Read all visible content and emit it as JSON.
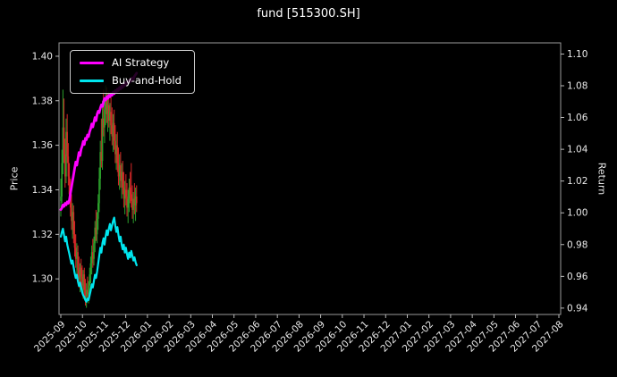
{
  "title": "fund [515300.SH]",
  "axes": {
    "left_label": "Price",
    "right_label": "Return"
  },
  "legend": [
    {
      "label": "AI Strategy",
      "color": "#ff00ff"
    },
    {
      "label": "Buy-and-Hold",
      "color": "#00e5ee"
    }
  ],
  "colors": {
    "background": "#000000",
    "text": "#eaeaea",
    "frame": "#9a9a9a",
    "up_candle": "#2ca02c",
    "down_candle": "#d62728",
    "ai_line": "#ff00ff",
    "buy_hold_line": "#00e5ee"
  },
  "chart_data": {
    "type": "candlestick+line",
    "title": "fund [515300.SH]",
    "x_tick_labels": [
      "2025-09",
      "2025-10",
      "2025-11",
      "2025-12",
      "2026-01",
      "2026-02",
      "2026-03",
      "2026-04",
      "2026-05",
      "2026-06",
      "2026-07",
      "2026-08",
      "2026-09",
      "2026-10",
      "2026-11",
      "2026-12",
      "2027-01",
      "2027-02",
      "2027-03",
      "2027-04",
      "2027-05",
      "2027-06",
      "2027-07",
      "2027-08"
    ],
    "price_axis": {
      "label": "Price",
      "ticks": [
        1.3,
        1.32,
        1.34,
        1.36,
        1.38,
        1.4
      ],
      "range": [
        1.284,
        1.406
      ]
    },
    "return_axis": {
      "label": "Return",
      "ticks": [
        0.94,
        0.96,
        0.98,
        1.0,
        1.02,
        1.04,
        1.06,
        1.08,
        1.1
      ],
      "range": [
        0.936,
        1.107
      ]
    },
    "data_date_range": [
      "2025-09-01",
      "2025-12-15"
    ],
    "data_span_months": 3.5,
    "ohlc_legend": [
      "open",
      "high",
      "low",
      "close"
    ],
    "ohlc": [
      [
        1.335,
        1.345,
        1.328,
        1.337
      ],
      [
        1.337,
        1.358,
        1.334,
        1.352
      ],
      [
        1.352,
        1.385,
        1.347,
        1.368
      ],
      [
        1.368,
        1.381,
        1.352,
        1.356
      ],
      [
        1.356,
        1.363,
        1.341,
        1.346
      ],
      [
        1.346,
        1.372,
        1.343,
        1.366
      ],
      [
        1.366,
        1.374,
        1.352,
        1.355
      ],
      [
        1.355,
        1.361,
        1.342,
        1.346
      ],
      [
        1.346,
        1.352,
        1.334,
        1.338
      ],
      [
        1.338,
        1.345,
        1.328,
        1.332
      ],
      [
        1.332,
        1.338,
        1.322,
        1.326
      ],
      [
        1.326,
        1.334,
        1.318,
        1.33
      ],
      [
        1.33,
        1.333,
        1.316,
        1.32
      ],
      [
        1.32,
        1.326,
        1.31,
        1.314
      ],
      [
        1.314,
        1.32,
        1.305,
        1.309
      ],
      [
        1.309,
        1.316,
        1.302,
        1.312
      ],
      [
        1.312,
        1.315,
        1.3,
        1.304
      ],
      [
        1.304,
        1.31,
        1.296,
        1.3
      ],
      [
        1.3,
        1.307,
        1.294,
        1.305
      ],
      [
        1.305,
        1.309,
        1.297,
        1.301
      ],
      [
        1.301,
        1.306,
        1.293,
        1.297
      ],
      [
        1.297,
        1.304,
        1.291,
        1.302
      ],
      [
        1.302,
        1.305,
        1.292,
        1.295
      ],
      [
        1.295,
        1.3,
        1.288,
        1.292
      ],
      [
        1.292,
        1.298,
        1.287,
        1.295
      ],
      [
        1.295,
        1.301,
        1.29,
        1.293
      ],
      [
        1.293,
        1.299,
        1.289,
        1.297
      ],
      [
        1.297,
        1.305,
        1.293,
        1.302
      ],
      [
        1.302,
        1.31,
        1.298,
        1.307
      ],
      [
        1.307,
        1.315,
        1.302,
        1.312
      ],
      [
        1.312,
        1.318,
        1.305,
        1.309
      ],
      [
        1.309,
        1.319,
        1.306,
        1.316
      ],
      [
        1.316,
        1.326,
        1.312,
        1.323
      ],
      [
        1.323,
        1.331,
        1.317,
        1.32
      ],
      [
        1.32,
        1.33,
        1.316,
        1.327
      ],
      [
        1.327,
        1.338,
        1.322,
        1.334
      ],
      [
        1.334,
        1.35,
        1.33,
        1.345
      ],
      [
        1.345,
        1.362,
        1.34,
        1.357
      ],
      [
        1.357,
        1.372,
        1.35,
        1.353
      ],
      [
        1.353,
        1.38,
        1.349,
        1.372
      ],
      [
        1.372,
        1.385,
        1.364,
        1.368
      ],
      [
        1.368,
        1.38,
        1.361,
        1.376
      ],
      [
        1.376,
        1.387,
        1.369,
        1.381
      ],
      [
        1.381,
        1.386,
        1.37,
        1.374
      ],
      [
        1.374,
        1.383,
        1.366,
        1.378
      ],
      [
        1.378,
        1.384,
        1.368,
        1.371
      ],
      [
        1.371,
        1.379,
        1.362,
        1.375
      ],
      [
        1.375,
        1.382,
        1.365,
        1.369
      ],
      [
        1.369,
        1.377,
        1.36,
        1.364
      ],
      [
        1.364,
        1.374,
        1.357,
        1.37
      ],
      [
        1.37,
        1.376,
        1.358,
        1.362
      ],
      [
        1.362,
        1.369,
        1.352,
        1.356
      ],
      [
        1.356,
        1.365,
        1.349,
        1.36
      ],
      [
        1.36,
        1.366,
        1.348,
        1.352
      ],
      [
        1.352,
        1.359,
        1.342,
        1.346
      ],
      [
        1.346,
        1.356,
        1.34,
        1.351
      ],
      [
        1.351,
        1.357,
        1.341,
        1.344
      ],
      [
        1.344,
        1.352,
        1.336,
        1.348
      ],
      [
        1.348,
        1.353,
        1.338,
        1.341
      ],
      [
        1.341,
        1.348,
        1.332,
        1.336
      ],
      [
        1.336,
        1.344,
        1.329,
        1.34
      ],
      [
        1.34,
        1.347,
        1.333,
        1.337
      ],
      [
        1.337,
        1.343,
        1.328,
        1.332
      ],
      [
        1.332,
        1.34,
        1.325,
        1.336
      ],
      [
        1.336,
        1.345,
        1.33,
        1.341
      ],
      [
        1.341,
        1.348,
        1.334,
        1.338
      ],
      [
        1.338,
        1.352,
        1.332,
        1.335
      ],
      [
        1.335,
        1.342,
        1.327,
        1.331
      ],
      [
        1.331,
        1.339,
        1.325,
        1.336
      ],
      [
        1.336,
        1.343,
        1.329,
        1.333
      ],
      [
        1.333,
        1.341,
        1.326,
        1.337
      ],
      [
        1.337,
        1.342,
        1.33,
        1.334
      ]
    ],
    "series": [
      {
        "name": "AI Strategy",
        "axis": "return",
        "color": "#ff00ff",
        "values": [
          1.002,
          1.003,
          1.005,
          1.004,
          1.006,
          1.005,
          1.007,
          1.006,
          1.008,
          1.012,
          1.016,
          1.02,
          1.024,
          1.028,
          1.032,
          1.03,
          1.034,
          1.038,
          1.036,
          1.04,
          1.042,
          1.045,
          1.043,
          1.047,
          1.046,
          1.049,
          1.048,
          1.051,
          1.053,
          1.056,
          1.054,
          1.057,
          1.06,
          1.058,
          1.062,
          1.064,
          1.063,
          1.066,
          1.068,
          1.067,
          1.07,
          1.072,
          1.071,
          1.073,
          1.072,
          1.074,
          1.073,
          1.075,
          1.074,
          1.076,
          1.075,
          1.077,
          1.076,
          1.078,
          1.077,
          1.079,
          1.078,
          1.08,
          1.079,
          1.081,
          1.08,
          1.082,
          1.081,
          1.083,
          1.082,
          1.084,
          1.083,
          1.085,
          1.084,
          1.086,
          1.087,
          1.088
        ]
      },
      {
        "name": "Buy-and-Hold",
        "axis": "return",
        "color": "#00e5ee",
        "values": [
          0.985,
          0.988,
          0.99,
          0.986,
          0.982,
          0.985,
          0.98,
          0.977,
          0.974,
          0.971,
          0.968,
          0.97,
          0.966,
          0.962,
          0.959,
          0.961,
          0.957,
          0.954,
          0.956,
          0.953,
          0.95,
          0.948,
          0.947,
          0.945,
          0.944,
          0.946,
          0.945,
          0.948,
          0.951,
          0.955,
          0.953,
          0.957,
          0.961,
          0.959,
          0.963,
          0.968,
          0.973,
          0.978,
          0.975,
          0.981,
          0.984,
          0.98,
          0.985,
          0.989,
          0.986,
          0.99,
          0.993,
          0.989,
          0.992,
          0.995,
          0.997,
          0.992,
          0.988,
          0.991,
          0.986,
          0.982,
          0.985,
          0.98,
          0.977,
          0.98,
          0.975,
          0.978,
          0.974,
          0.971,
          0.975,
          0.972,
          0.976,
          0.973,
          0.97,
          0.972,
          0.969,
          0.967
        ]
      }
    ]
  }
}
